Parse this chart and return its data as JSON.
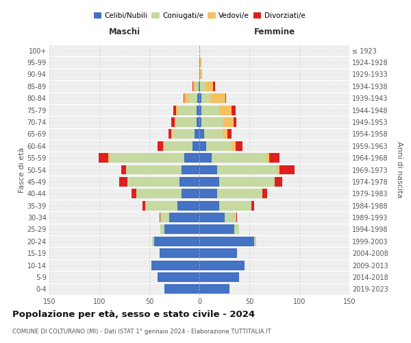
{
  "age_groups": [
    "0-4",
    "5-9",
    "10-14",
    "15-19",
    "20-24",
    "25-29",
    "30-34",
    "35-39",
    "40-44",
    "45-49",
    "50-54",
    "55-59",
    "60-64",
    "65-69",
    "70-74",
    "75-79",
    "80-84",
    "85-89",
    "90-94",
    "95-99",
    "100+"
  ],
  "birth_years": [
    "2019-2023",
    "2014-2018",
    "2009-2013",
    "2004-2008",
    "1999-2003",
    "1994-1998",
    "1989-1993",
    "1984-1988",
    "1979-1983",
    "1974-1978",
    "1969-1973",
    "1964-1968",
    "1959-1963",
    "1954-1958",
    "1949-1953",
    "1944-1948",
    "1939-1943",
    "1934-1938",
    "1929-1933",
    "1924-1928",
    "≤ 1923"
  ],
  "males_celibi": [
    35,
    42,
    48,
    40,
    45,
    35,
    30,
    22,
    18,
    20,
    18,
    15,
    7,
    5,
    3,
    3,
    2,
    1,
    0,
    0,
    0
  ],
  "males_coniugati": [
    0,
    0,
    0,
    0,
    2,
    4,
    9,
    32,
    45,
    52,
    55,
    75,
    28,
    22,
    20,
    18,
    9,
    3,
    0,
    0,
    0
  ],
  "males_vedovi": [
    0,
    0,
    0,
    0,
    0,
    0,
    0,
    0,
    0,
    0,
    0,
    1,
    1,
    1,
    2,
    2,
    4,
    2,
    0,
    0,
    0
  ],
  "males_divorziati": [
    0,
    0,
    0,
    0,
    0,
    0,
    1,
    3,
    5,
    8,
    5,
    10,
    6,
    3,
    3,
    3,
    1,
    1,
    0,
    0,
    0
  ],
  "females_nubili": [
    30,
    40,
    45,
    38,
    55,
    35,
    25,
    20,
    18,
    20,
    18,
    12,
    7,
    5,
    2,
    2,
    2,
    1,
    1,
    1,
    0
  ],
  "females_coniugate": [
    0,
    0,
    0,
    0,
    2,
    5,
    12,
    32,
    45,
    55,
    60,
    55,
    25,
    18,
    22,
    18,
    9,
    5,
    0,
    0,
    0
  ],
  "females_vedove": [
    0,
    0,
    0,
    0,
    0,
    0,
    0,
    0,
    0,
    0,
    2,
    3,
    4,
    5,
    10,
    12,
    15,
    8,
    2,
    1,
    0
  ],
  "females_divorziate": [
    0,
    0,
    0,
    0,
    0,
    0,
    1,
    3,
    5,
    8,
    15,
    10,
    7,
    4,
    3,
    4,
    1,
    2,
    0,
    0,
    0
  ],
  "colors_celibi": "#4472c4",
  "colors_coniugati": "#c5d9a0",
  "colors_vedovi": "#f5c060",
  "colors_divorziati": "#dd2020",
  "xlim": 150,
  "title": "Popolazione per età, sesso e stato civile - 2024",
  "subtitle": "COMUNE DI COLTURANO (MI) - Dati ISTAT 1° gennaio 2024 - Elaborazione TUTTITALIA.IT",
  "ylabel_left": "Fasce di età",
  "ylabel_right": "Anni di nascita",
  "xlabel_left": "Maschi",
  "xlabel_right": "Femmine",
  "bg_color": "#efefef",
  "legend_labels": [
    "Celibi/Nubili",
    "Coniugati/e",
    "Vedovi/e",
    "Divorziati/e"
  ]
}
